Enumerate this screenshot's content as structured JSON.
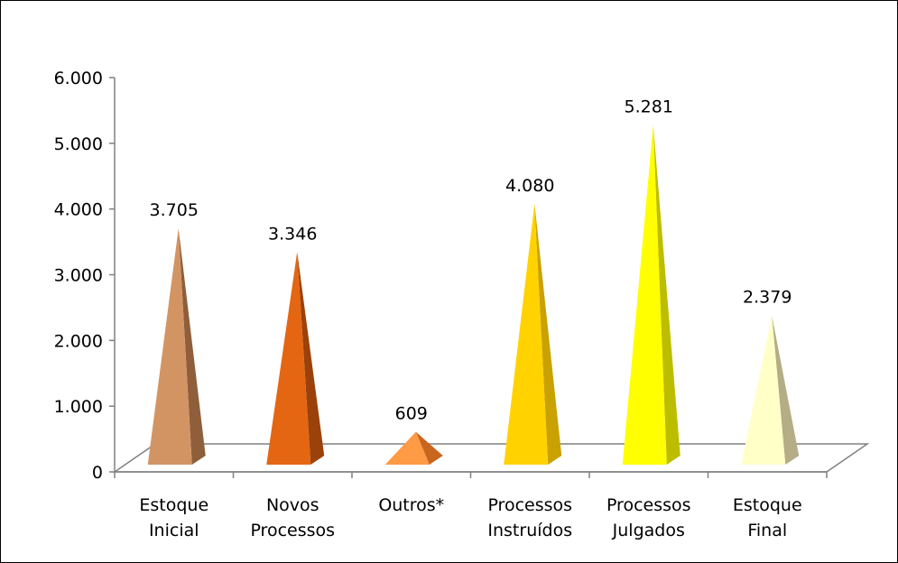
{
  "chart_data": {
    "type": "bar",
    "categories": [
      [
        "Estoque",
        "Inicial"
      ],
      [
        "Novos",
        "Processos"
      ],
      [
        "Outros*"
      ],
      [
        "Processos",
        "Instruídos"
      ],
      [
        "Processos",
        "Julgados"
      ],
      [
        "Estoque",
        "Final"
      ]
    ],
    "values": [
      3705,
      3346,
      609,
      4080,
      5281,
      2379
    ],
    "data_labels": [
      "3.705",
      "3.346",
      "609",
      "4.080",
      "5.281",
      "2.379"
    ],
    "y_ticks": [
      {
        "value": 0,
        "label": "0"
      },
      {
        "value": 1000,
        "label": "1.000"
      },
      {
        "value": 2000,
        "label": "2.000"
      },
      {
        "value": 3000,
        "label": "3.000"
      },
      {
        "value": 4000,
        "label": "4.000"
      },
      {
        "value": 5000,
        "label": "5.000"
      },
      {
        "value": 6000,
        "label": "6.000"
      }
    ],
    "ylim": [
      0,
      6000
    ],
    "grid": false,
    "colors": [
      {
        "front": "#D39464",
        "side": "#8E5F3A"
      },
      {
        "front": "#E46612",
        "side": "#9B410A"
      },
      {
        "front": "#FF9A45",
        "side": "#C9661E"
      },
      {
        "front": "#FFD200",
        "side": "#C9A100"
      },
      {
        "front": "#FFFF00",
        "side": "#BDBD00"
      },
      {
        "front": "#FFFFC8",
        "side": "#B5AD86"
      }
    ]
  }
}
